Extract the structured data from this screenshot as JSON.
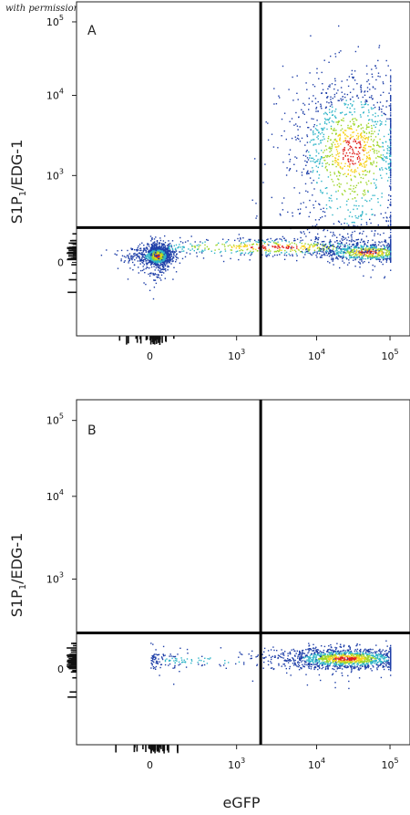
{
  "watermark": "with permission from R&D Systems",
  "chart_data": [
    {
      "type": "scatter",
      "panel_label": "A",
      "xlabel": "eGFP",
      "ylabel": "S1P₁/EDG-1",
      "x_scale": "biexponential",
      "y_scale": "biexponential",
      "x_ticks": [
        "0",
        "10^3",
        "10^4",
        "10^5"
      ],
      "y_ticks": [
        "0",
        "10^3",
        "10^4",
        "10^5"
      ],
      "gate": {
        "x": 2000,
        "y": 400
      },
      "populations": [
        {
          "name": "",
          "x_center": 80,
          "y_center": 80,
          "x_spread_decades": 0.35,
          "y_spread_decades": 0.35,
          "density": "high"
        },
        {
          "name": "",
          "x_center": 3000,
          "y_center": 180,
          "x_spread_decades": 0.9,
          "y_spread_decades": 0.3,
          "density": "medium"
        },
        {
          "name": "",
          "x_center": 50000,
          "y_center": 120,
          "x_spread_decades": 0.35,
          "y_spread_decades": 0.3,
          "density": "medium"
        },
        {
          "name": "",
          "x_center": 30000,
          "y_center": 2000,
          "x_spread_decades": 0.45,
          "y_spread_decades": 0.5,
          "density": "high"
        }
      ]
    },
    {
      "type": "scatter",
      "panel_label": "B",
      "xlabel": "eGFP",
      "ylabel": "S1P₁/EDG-1",
      "x_scale": "biexponential",
      "y_scale": "biexponential",
      "x_ticks": [
        "0",
        "10^3",
        "10^4",
        "10^5"
      ],
      "y_ticks": [
        "0",
        "10^3",
        "10^4",
        "10^5"
      ],
      "gate": {
        "x": 2000,
        "y": 400
      },
      "populations": [
        {
          "name": "",
          "x_center": 25000,
          "y_center": 120,
          "x_spread_decades": 0.45,
          "y_spread_decades": 0.3,
          "density": "high"
        },
        {
          "name": "",
          "x_center": 500,
          "y_center": 100,
          "x_spread_decades": 0.8,
          "y_spread_decades": 0.3,
          "density": "low"
        }
      ]
    }
  ],
  "colors": {
    "low": "#1f3fa8",
    "mid": "#2fb5c8",
    "midhigh": "#9ed62a",
    "high": "#f7d21c",
    "peak": "#e0201c"
  }
}
